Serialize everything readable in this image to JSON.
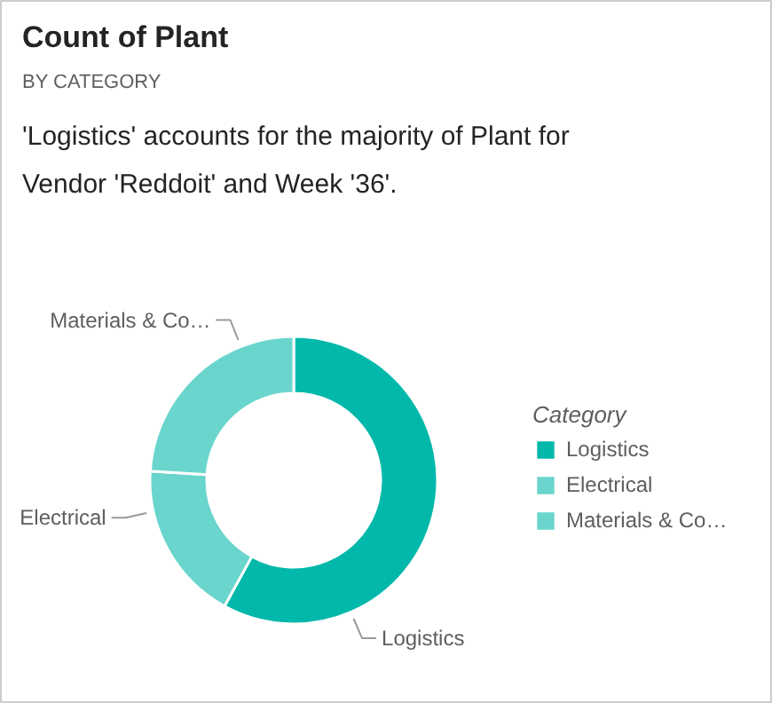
{
  "chart_data": {
    "type": "donut",
    "title": "Count of Plant",
    "subtitle": "BY CATEGORY",
    "annotations": [
      "'Logistics' accounts for the majority of Plant for Vendor 'Reddoit' and Week '36'."
    ],
    "legend_title": "Category",
    "legend": "right",
    "categories": [
      "Logistics",
      "Electrical",
      "Materials & Co…"
    ],
    "values": [
      58,
      18,
      24
    ],
    "colors": [
      "#01b8aa",
      "#6ad5cc",
      "#6ad5cc"
    ]
  }
}
